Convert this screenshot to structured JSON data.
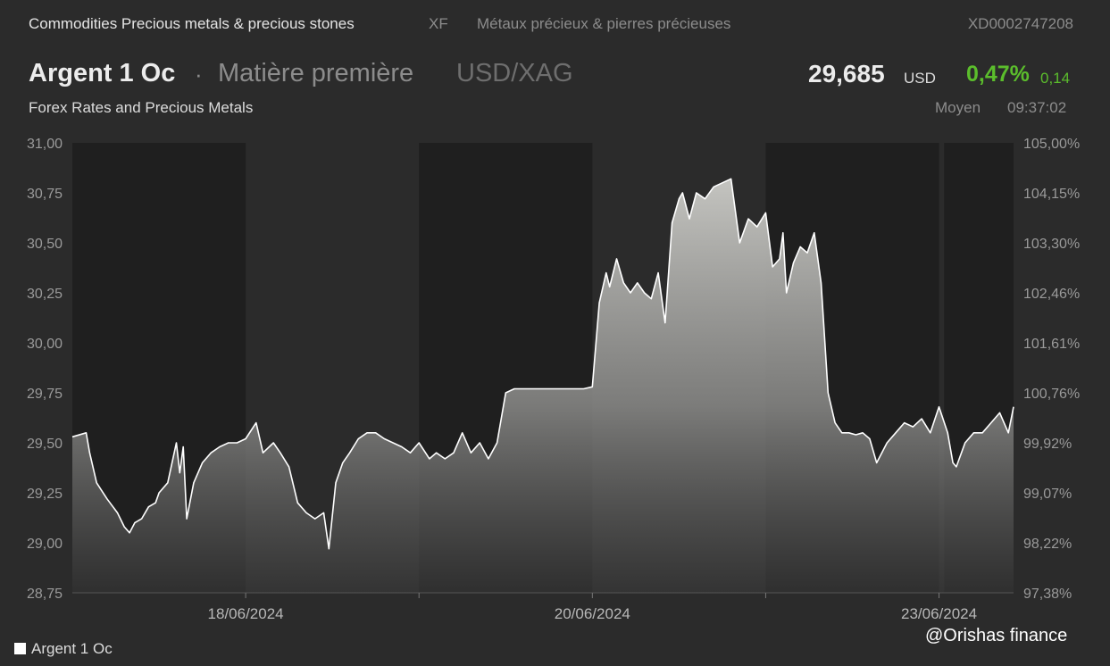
{
  "header": {
    "category": "Commodities Precious metals & precious stones",
    "exchange": "XF",
    "category_fr": "Métaux précieux & pierres précieuses",
    "isin": "XD0002747208",
    "name": "Argent 1 Oc",
    "separator": "·",
    "type": "Matière première",
    "pair": "USD/XAG",
    "price": "29,685",
    "currency": "USD",
    "change_pct": "0,47%",
    "change_abs": "0,14",
    "subtitle": "Forex Rates and Precious Metals",
    "price_mode": "Moyen",
    "time": "09:37:02"
  },
  "watermark": "@Orishas finance",
  "colors": {
    "background": "#2b2b2b",
    "night_band": "#1f1f1f",
    "line": "#ffffff",
    "positive": "#5bbd2c"
  },
  "chart_data": {
    "type": "area",
    "title": "",
    "xlabel": "",
    "ylabel": "",
    "ylim": [
      28.75,
      31.0
    ],
    "y_ticks": [
      "31,00",
      "30,75",
      "30,50",
      "30,25",
      "30,00",
      "29,75",
      "29,50",
      "29,25",
      "29,00",
      "28,75"
    ],
    "y_tick_values": [
      31.0,
      30.75,
      30.5,
      30.25,
      30.0,
      29.75,
      29.5,
      29.25,
      29.0,
      28.75
    ],
    "y2_ticks": [
      "105,00%",
      "104,15%",
      "103,30%",
      "102,46%",
      "101,61%",
      "100,76%",
      "99,92%",
      "99,07%",
      "98,22%",
      "97,38%"
    ],
    "x_ticks": [
      {
        "label": "18/06/2024",
        "day": 1.0
      },
      {
        "label": "20/06/2024",
        "day": 3.0
      },
      {
        "label": "23/06/2024",
        "day": 5.0
      }
    ],
    "session_shading": [
      [
        0.0,
        1.0
      ],
      [
        2.0,
        3.0
      ],
      [
        4.0,
        5.0
      ],
      [
        5.03,
        5.43
      ]
    ],
    "grid": false,
    "legend_position": "bottom-left",
    "series": [
      {
        "name": "Argent 1 Oc",
        "x_day": [
          0.0,
          0.08,
          0.1,
          0.14,
          0.2,
          0.26,
          0.3,
          0.33,
          0.36,
          0.4,
          0.44,
          0.48,
          0.5,
          0.55,
          0.6,
          0.62,
          0.64,
          0.66,
          0.7,
          0.75,
          0.8,
          0.85,
          0.9,
          0.95,
          1.0,
          1.06,
          1.1,
          1.16,
          1.2,
          1.25,
          1.3,
          1.35,
          1.4,
          1.45,
          1.48,
          1.52,
          1.56,
          1.6,
          1.65,
          1.7,
          1.75,
          1.8,
          1.85,
          1.9,
          1.95,
          2.0,
          2.06,
          2.1,
          2.15,
          2.2,
          2.25,
          2.3,
          2.35,
          2.4,
          2.45,
          2.5,
          2.55,
          2.58,
          2.62,
          2.66,
          2.7,
          2.75,
          2.8,
          2.85,
          2.9,
          2.95,
          3.0,
          3.04,
          3.08,
          3.1,
          3.14,
          3.18,
          3.22,
          3.26,
          3.3,
          3.34,
          3.38,
          3.42,
          3.46,
          3.5,
          3.52,
          3.56,
          3.6,
          3.65,
          3.7,
          3.75,
          3.8,
          3.85,
          3.9,
          3.95,
          4.0,
          4.04,
          4.08,
          4.1,
          4.12,
          4.16,
          4.2,
          4.24,
          4.28,
          4.32,
          4.36,
          4.4,
          4.44,
          4.48,
          4.52,
          4.56,
          4.6,
          4.64,
          4.7,
          4.75,
          4.8,
          4.85,
          4.9,
          4.95,
          5.0,
          5.05,
          5.08,
          5.1,
          5.15,
          5.2,
          5.25,
          5.3,
          5.35,
          5.4,
          5.43
        ],
        "values": [
          29.53,
          29.55,
          29.45,
          29.3,
          29.22,
          29.15,
          29.08,
          29.05,
          29.1,
          29.12,
          29.18,
          29.2,
          29.25,
          29.3,
          29.5,
          29.35,
          29.48,
          29.12,
          29.3,
          29.4,
          29.45,
          29.48,
          29.5,
          29.5,
          29.52,
          29.6,
          29.45,
          29.5,
          29.45,
          29.38,
          29.2,
          29.15,
          29.12,
          29.15,
          28.97,
          29.3,
          29.4,
          29.45,
          29.52,
          29.55,
          29.55,
          29.52,
          29.5,
          29.48,
          29.45,
          29.5,
          29.42,
          29.45,
          29.42,
          29.45,
          29.55,
          29.45,
          29.5,
          29.42,
          29.5,
          29.75,
          29.77,
          29.77,
          29.77,
          29.77,
          29.77,
          29.77,
          29.77,
          29.77,
          29.77,
          29.77,
          29.78,
          30.2,
          30.35,
          30.28,
          30.42,
          30.3,
          30.25,
          30.3,
          30.25,
          30.22,
          30.35,
          30.1,
          30.6,
          30.72,
          30.75,
          30.62,
          30.75,
          30.72,
          30.78,
          30.8,
          30.82,
          30.5,
          30.62,
          30.58,
          30.65,
          30.38,
          30.42,
          30.55,
          30.25,
          30.4,
          30.48,
          30.45,
          30.55,
          30.3,
          29.75,
          29.6,
          29.55,
          29.55,
          29.54,
          29.55,
          29.52,
          29.4,
          29.5,
          29.55,
          29.6,
          29.58,
          29.62,
          29.55,
          29.68,
          29.55,
          29.4,
          29.38,
          29.5,
          29.55,
          29.55,
          29.6,
          29.65,
          29.55,
          29.68
        ]
      }
    ]
  }
}
